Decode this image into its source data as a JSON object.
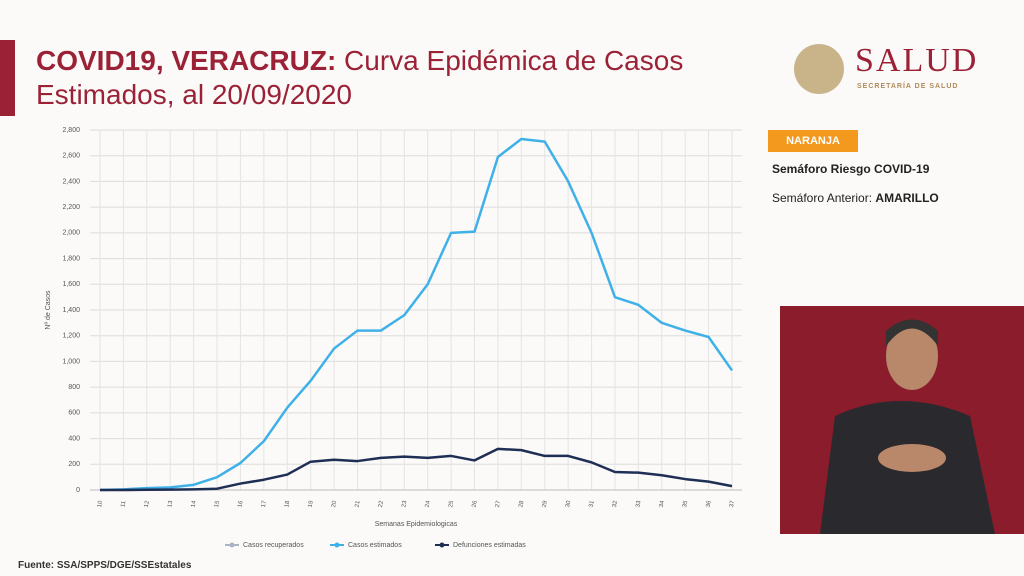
{
  "header": {
    "title_bold": "COVID19, VERACRUZ:",
    "title_rest": "Curva Epidémica de Casos Estimados, al 20/09/2020"
  },
  "logo": {
    "name": "SALUD",
    "subtitle": "SECRETARÍA DE SALUD"
  },
  "semaforo": {
    "badge": "NARANJA",
    "label": "Semáforo Riesgo COVID-19",
    "previous_label": "Semáforo Anterior:",
    "previous_value": "AMARILLO"
  },
  "footer": "Fuente: SSA/SPPS/DGE/SSEstatales",
  "chart_data": {
    "type": "line",
    "x_label": "Semanas Epidemiologicas",
    "y_label": "Nº de Casos",
    "categories": [
      "10",
      "11",
      "12",
      "13",
      "14",
      "15",
      "16",
      "17",
      "18",
      "19",
      "20",
      "21",
      "22",
      "23",
      "24",
      "25",
      "26",
      "27",
      "28",
      "29",
      "30",
      "31",
      "32",
      "33",
      "34",
      "35",
      "36",
      "37"
    ],
    "series": [
      {
        "name": "Casos recuperados",
        "color": "#a9b4c2",
        "values": [
          null,
          null,
          null,
          null,
          null,
          null,
          null,
          null,
          null,
          null,
          null,
          null,
          null,
          null,
          null,
          null,
          null,
          null,
          null,
          null,
          null,
          null,
          null,
          null,
          null,
          null,
          null,
          null
        ]
      },
      {
        "name": "Casos estimados",
        "color": "#3fb0e8",
        "values": [
          0,
          5,
          15,
          20,
          40,
          100,
          210,
          380,
          640,
          850,
          1100,
          1240,
          1240,
          1360,
          1600,
          2000,
          2010,
          2590,
          2730,
          2710,
          2400,
          2000,
          1500,
          1440,
          1300,
          1240,
          1190,
          930
        ]
      },
      {
        "name": "Defunciones estimadas",
        "color": "#1f2e55",
        "values": [
          0,
          0,
          2,
          3,
          5,
          10,
          50,
          80,
          120,
          220,
          235,
          225,
          250,
          260,
          250,
          265,
          230,
          320,
          310,
          265,
          265,
          215,
          140,
          135,
          115,
          85,
          65,
          30
        ]
      }
    ],
    "ylim": [
      0,
      2800
    ],
    "yticks": [
      0,
      200,
      400,
      600,
      800,
      {
        "value": 1000,
        "label": "1,000"
      },
      {
        "value": 1200,
        "label": "1,200"
      },
      {
        "value": 1400,
        "label": "1,400"
      },
      {
        "value": 1600,
        "label": "1,600"
      },
      {
        "value": 1800,
        "label": "1,800"
      },
      {
        "value": 2000,
        "label": "2,000"
      },
      {
        "value": 2200,
        "label": "2,200"
      },
      {
        "value": 2400,
        "label": "2,400"
      },
      {
        "value": 2600,
        "label": "2,600"
      },
      {
        "value": 2800,
        "label": "2,800"
      }
    ],
    "grid": true
  }
}
